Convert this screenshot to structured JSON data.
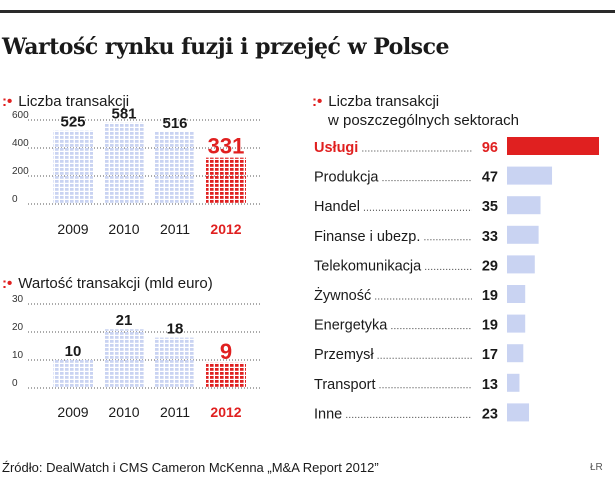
{
  "title": "Wartość rynku fuzji i przejęć w Polsce",
  "source": "Źródło: DealWatch i CMS Cameron McKenna „M&A Report 2012”",
  "credit": "ŁR",
  "colors": {
    "bar": "#c9d3f2",
    "highlight": "#e02020",
    "text": "#1a1a1a",
    "axis": "#555555"
  },
  "chart_data": [
    {
      "type": "bar",
      "title": "Liczba transakcji",
      "categories": [
        "2009",
        "2010",
        "2011",
        "2012"
      ],
      "values": [
        525,
        581,
        516,
        331
      ],
      "value_labels": [
        "525",
        "581",
        "516",
        "331"
      ],
      "highlight_index": 3,
      "yticks": [
        "0",
        "200",
        "400",
        "600"
      ],
      "ylim": [
        0,
        600
      ],
      "grid": true
    },
    {
      "type": "bar",
      "title": "Wartość transakcji (mld euro)",
      "categories": [
        "2009",
        "2010",
        "2011",
        "2012"
      ],
      "values": [
        10,
        21,
        18,
        9
      ],
      "value_labels": [
        "10",
        "21",
        "18",
        "9"
      ],
      "highlight_index": 3,
      "yticks": [
        "0",
        "10",
        "20",
        "30"
      ],
      "ylim": [
        0,
        30
      ],
      "grid": true
    },
    {
      "type": "bar",
      "orientation": "horizontal",
      "title": "Liczba transakcji\nw poszczególnych sektorach",
      "title_lines": [
        "Liczba transakcji",
        "w poszczególnych sektorach"
      ],
      "categories": [
        "Usługi",
        "Produkcja",
        "Handel",
        "Finanse i ubezp.",
        "Telekomunikacja",
        "Żywność",
        "Energetyka",
        "Przemysł",
        "Transport",
        "Inne"
      ],
      "values": [
        96,
        47,
        35,
        33,
        29,
        19,
        19,
        17,
        13,
        23
      ],
      "value_labels": [
        "96",
        "47",
        "35",
        "33",
        "29",
        "19",
        "19",
        "17",
        "13",
        "23"
      ],
      "highlight_index": 0
    }
  ]
}
